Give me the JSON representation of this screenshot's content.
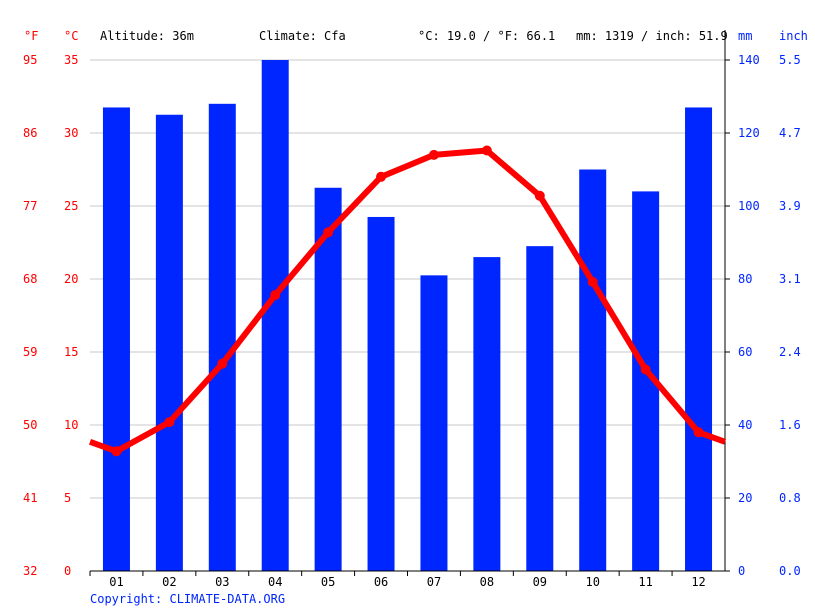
{
  "header": {
    "f_unit": "°F",
    "c_unit": "°C",
    "altitude": "Altitude: 36m",
    "climate": "Climate: Cfa",
    "temp_avg": "°C: 19.0 / °F: 66.1",
    "precip_total": "mm: 1319 / inch: 51.9",
    "mm_unit": "mm",
    "inch_unit": "inch"
  },
  "copyright": "Copyright: CLIMATE-DATA.ORG",
  "colors": {
    "temp": "#ff0000",
    "precip": "#0026ff",
    "axis_left": "#ff0000",
    "axis_right": "#0026ff",
    "grid": "#c8c8c8"
  },
  "chart_data": {
    "type": "bar",
    "categories": [
      "01",
      "02",
      "03",
      "04",
      "05",
      "06",
      "07",
      "08",
      "09",
      "10",
      "11",
      "12"
    ],
    "series": [
      {
        "type": "bar",
        "unit": "mm",
        "values": [
          127,
          125,
          128,
          140,
          105,
          97,
          81,
          86,
          89,
          110,
          104,
          127
        ]
      },
      {
        "type": "line",
        "unit": "°C",
        "values": [
          8.2,
          10.2,
          14.2,
          18.9,
          23.2,
          27.0,
          28.5,
          28.8,
          25.7,
          19.8,
          13.8,
          9.5
        ]
      }
    ],
    "y_left_c": {
      "range": [
        0,
        35
      ],
      "ticks": [
        "0",
        "5",
        "10",
        "15",
        "20",
        "25",
        "30",
        "35"
      ]
    },
    "y_left_f": {
      "ticks": [
        "32",
        "41",
        "50",
        "59",
        "68",
        "77",
        "86",
        "95"
      ]
    },
    "y_right_mm": {
      "range": [
        0,
        140
      ],
      "ticks": [
        "0",
        "20",
        "40",
        "60",
        "80",
        "100",
        "120",
        "140"
      ]
    },
    "y_right_inch": {
      "ticks": [
        "0.0",
        "0.8",
        "1.6",
        "2.4",
        "3.1",
        "3.9",
        "4.7",
        "5.5"
      ]
    },
    "grid": true
  }
}
